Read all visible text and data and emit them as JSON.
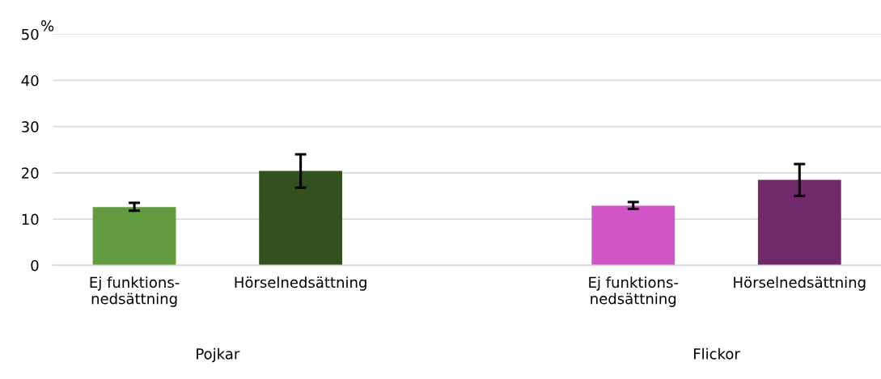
{
  "chart_data": {
    "type": "bar",
    "ylabel": "%",
    "categories": [
      "Ej funktions-\nnedsättning",
      "Hörselnedsättning",
      null,
      "Ej funktions-\nnedsättning",
      "Hörselnedsättning"
    ],
    "values": [
      12.6,
      20.4,
      null,
      12.9,
      18.5
    ],
    "errors": [
      [
        11.8,
        13.5
      ],
      [
        16.8,
        24.0
      ],
      null,
      [
        12.2,
        13.7
      ],
      [
        15.0,
        21.9
      ]
    ],
    "colors": [
      "#629a3f",
      "#33501f",
      "#ffffff",
      "#d056c8",
      "#70296a"
    ],
    "ylim": [
      0,
      50
    ],
    "yticks": [
      0,
      10,
      20,
      30,
      40,
      50
    ],
    "grid": "y",
    "annotations": [
      "Pojkar",
      "Flickor"
    ]
  }
}
